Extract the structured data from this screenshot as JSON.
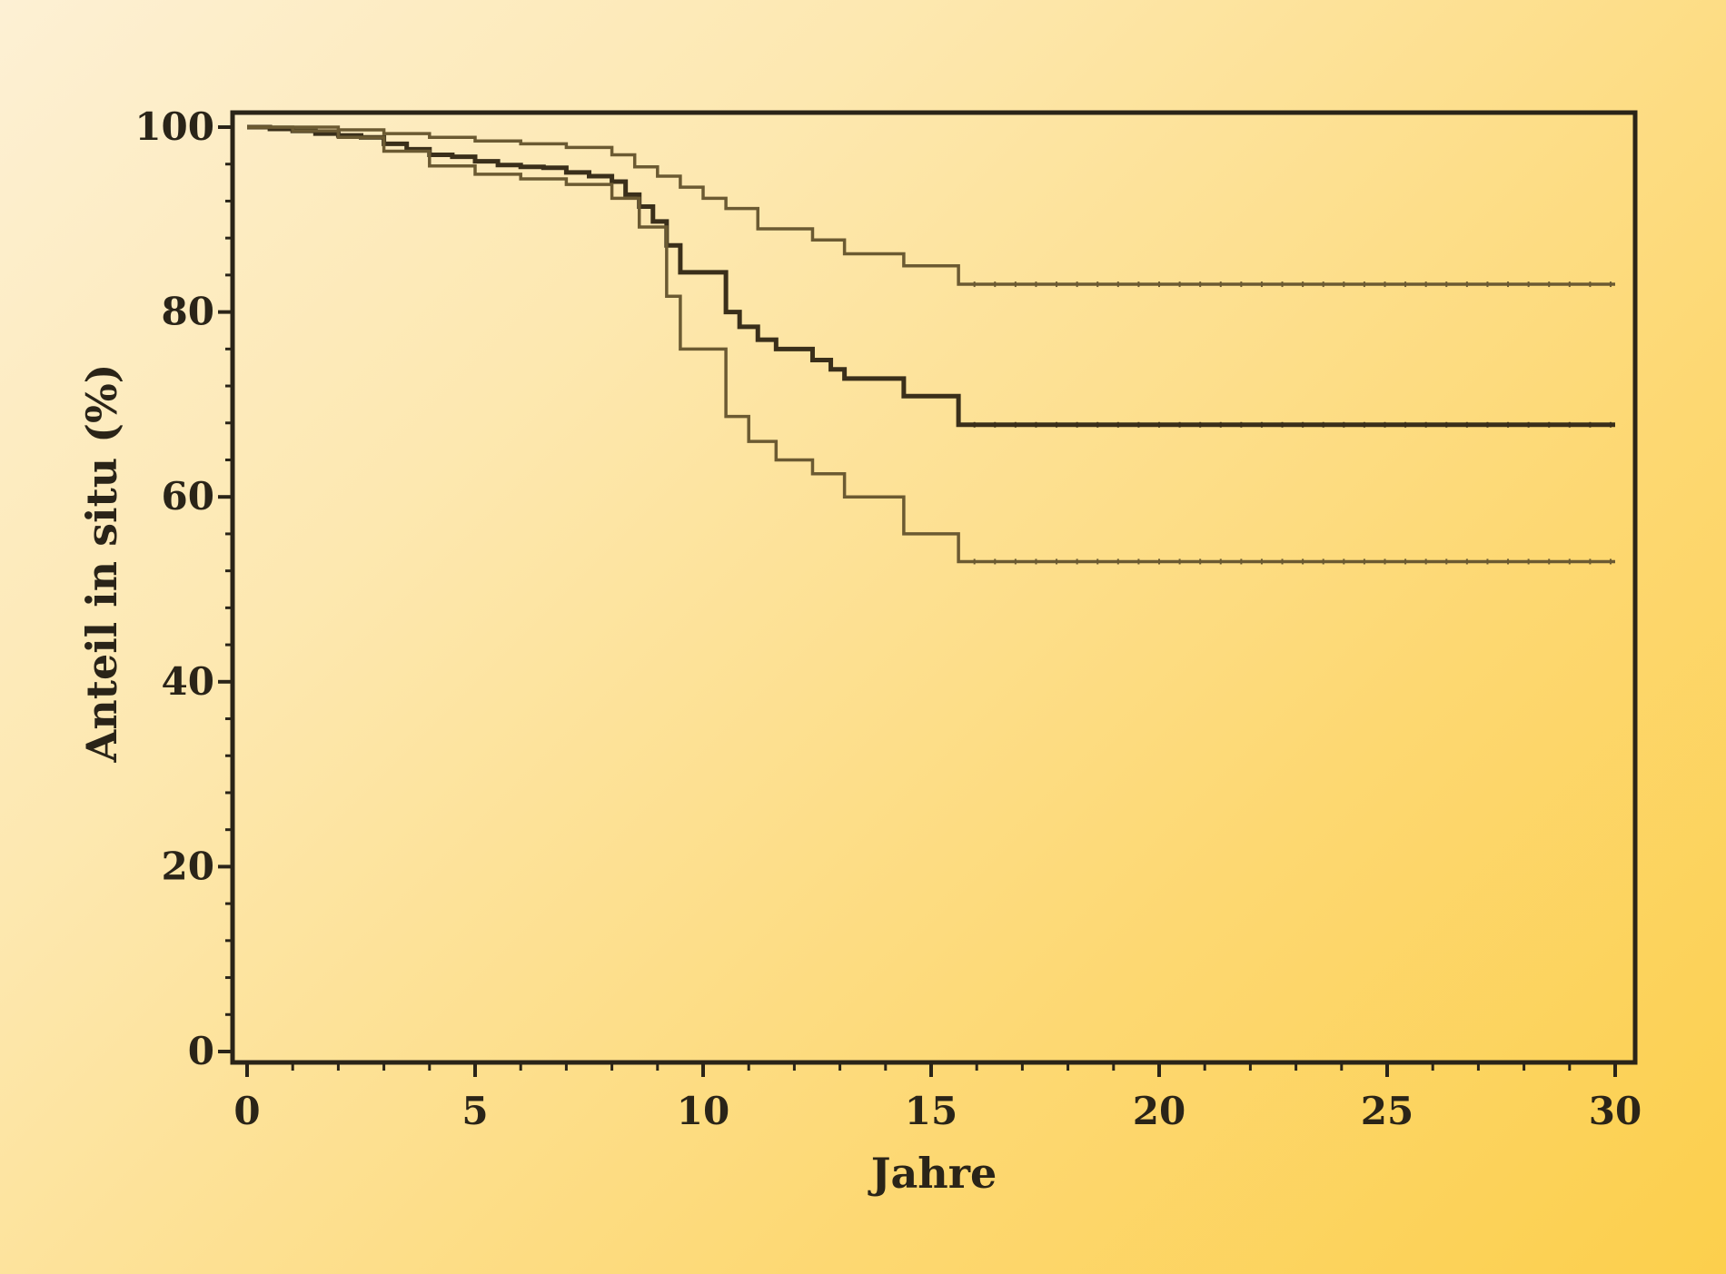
{
  "chart_data": {
    "type": "line",
    "title": "",
    "xlabel": "Jahre",
    "ylabel": "Anteil in situ (%)",
    "xlim": [
      0,
      30
    ],
    "ylim": [
      0,
      100
    ],
    "x_ticks": [
      "0",
      "5",
      "10",
      "15",
      "20",
      "25",
      "30"
    ],
    "y_ticks": [
      "0",
      "20",
      "40",
      "60",
      "80",
      "100"
    ],
    "grid": false,
    "step": true,
    "colors": {
      "main": "#3a2f1a",
      "ci": "#6b5a32"
    },
    "series": [
      {
        "role": "estimate",
        "x": [
          0,
          0.5,
          1.0,
          1.5,
          2.0,
          2.5,
          3.0,
          3.5,
          4.0,
          4.5,
          5.0,
          5.5,
          6.0,
          6.5,
          7.0,
          7.5,
          8.0,
          8.3,
          8.6,
          8.9,
          9.2,
          9.5,
          10.5,
          10.8,
          11.2,
          11.6,
          12.4,
          12.8,
          13.1,
          14.4,
          15.6,
          30.0
        ],
        "y": [
          100,
          99.8,
          99.6,
          99.3,
          99.1,
          98.9,
          98.2,
          97.6,
          97.0,
          96.8,
          96.3,
          95.9,
          95.7,
          95.6,
          95.1,
          94.7,
          94.1,
          92.7,
          91.4,
          89.8,
          87.2,
          84.3,
          80.0,
          78.4,
          77.0,
          76.0,
          74.8,
          73.8,
          72.8,
          70.9,
          67.8,
          67.8
        ]
      },
      {
        "role": "upper",
        "x": [
          0,
          1.0,
          2.0,
          3.0,
          4.0,
          5.0,
          6.0,
          7.0,
          8.0,
          8.5,
          9.0,
          9.5,
          10.0,
          10.5,
          11.2,
          12.4,
          13.1,
          14.4,
          15.6,
          30.0
        ],
        "y": [
          100,
          100,
          99.7,
          99.3,
          98.9,
          98.5,
          98.2,
          97.8,
          97.0,
          95.7,
          94.7,
          93.5,
          92.3,
          91.2,
          89.0,
          87.8,
          86.3,
          85.0,
          83.0,
          83.0
        ]
      },
      {
        "role": "lower",
        "x": [
          0,
          1.0,
          2.0,
          3.0,
          4.0,
          5.0,
          6.0,
          7.0,
          8.0,
          8.6,
          9.2,
          9.5,
          10.5,
          11.0,
          11.6,
          12.4,
          13.1,
          14.4,
          15.6,
          30.0
        ],
        "y": [
          100,
          99.6,
          98.9,
          97.4,
          95.8,
          94.9,
          94.4,
          93.8,
          92.3,
          89.2,
          81.7,
          76.0,
          68.7,
          66.0,
          64.0,
          62.5,
          60.0,
          56.0,
          53.0,
          53.0
        ]
      }
    ]
  }
}
